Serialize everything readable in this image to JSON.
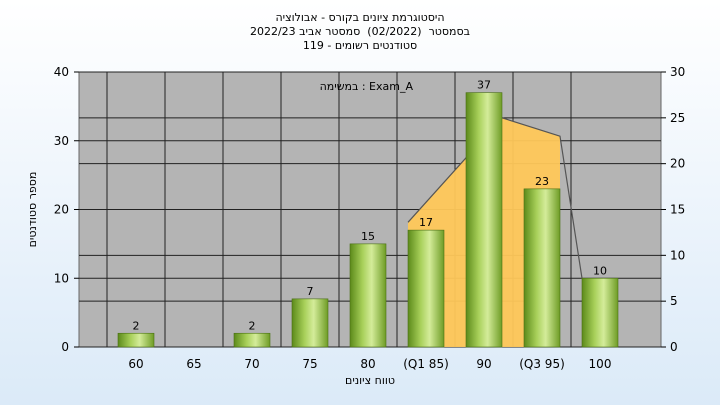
{
  "chart_data": {
    "type": "bar",
    "title_lines": [
      "היסטוגרמת ציונים בקורס - אבולוציה",
      "בסמסטר  (02/2022)  סמסטר אביב 2022/23",
      "סטודנטים רשומים - 119"
    ],
    "annotation": "במשימה : Exam_A",
    "categories": [
      "60",
      "65",
      "70",
      "75",
      "80",
      "(Q1 85)",
      "90",
      "(Q3 95)",
      "100"
    ],
    "values": [
      2,
      0,
      2,
      7,
      15,
      17,
      37,
      23,
      10
    ],
    "xlabel": "טווח ציונים",
    "ylabel": "מספר סטודנטים",
    "ylim": [
      0,
      40
    ],
    "yticks": [
      0,
      10,
      20,
      30,
      40
    ],
    "y2lim": [
      0,
      30
    ],
    "y2ticks": [
      0,
      5,
      10,
      15,
      20,
      25,
      30
    ],
    "band": {
      "categories": [
        "(Q1 85)",
        "90",
        "(Q3 95)"
      ],
      "values": [
        17,
        25,
        23
      ]
    },
    "grid": true,
    "colors": {
      "bar_light": "#d4ec9a",
      "bar_dark": "#5c8a1a",
      "band": "#ffc85a",
      "plot_bg": "#b4b4b4",
      "line": "#555555"
    }
  }
}
